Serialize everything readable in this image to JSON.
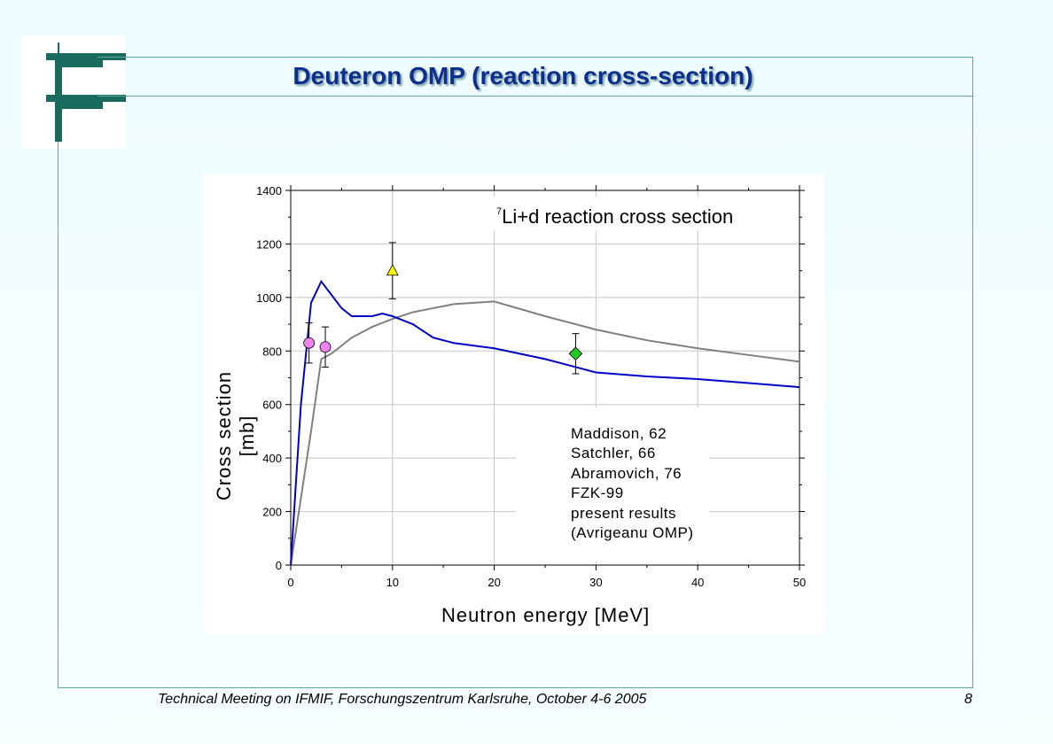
{
  "slide": {
    "title": "Deuteron OMP (reaction cross-section)",
    "footer": "Technical Meeting on IFMIF, Forschungszentrum Karlsruhe, October 4-6 2005",
    "page_number": "8",
    "colors": {
      "accent": "#1a6b5e",
      "title": "#0b2f8c",
      "frame": "#5aa8a8"
    }
  },
  "chart_data": {
    "type": "line",
    "title_sup": "7",
    "title": "Li+d reaction cross section",
    "xlabel": "Neutron energy [MeV]",
    "ylabel": "Cross section [mb]",
    "xlim": [
      0,
      50
    ],
    "ylim": [
      0,
      1400
    ],
    "xticks": [
      "0",
      "10",
      "20",
      "30",
      "40",
      "50"
    ],
    "yticks": [
      "0",
      "200",
      "400",
      "600",
      "800",
      "1000",
      "1200",
      "1400"
    ],
    "grid": true,
    "legend_position": "bottom-right",
    "series": [
      {
        "name": "FZK-99",
        "kind": "line",
        "color": "#808080",
        "x": [
          0,
          1,
          2,
          3,
          4,
          5,
          6,
          8,
          10,
          12,
          14,
          16,
          18,
          20,
          25,
          30,
          35,
          40,
          45,
          50
        ],
        "y": [
          0,
          250,
          500,
          770,
          790,
          820,
          850,
          890,
          920,
          945,
          960,
          975,
          980,
          985,
          930,
          880,
          840,
          810,
          785,
          760
        ]
      },
      {
        "name": "present results",
        "name_line2": "(Avrigeanu OMP)",
        "kind": "line",
        "color": "#0000c8",
        "x": [
          0,
          0.5,
          1,
          2,
          3,
          4,
          5,
          6,
          7,
          8,
          9,
          10,
          12,
          14,
          16,
          18,
          20,
          25,
          30,
          35,
          40,
          45,
          50
        ],
        "y": [
          0,
          300,
          600,
          980,
          1060,
          1010,
          960,
          930,
          930,
          930,
          940,
          930,
          900,
          850,
          830,
          820,
          810,
          770,
          720,
          705,
          695,
          680,
          665
        ]
      },
      {
        "name": "Maddison, 62",
        "kind": "marker",
        "marker": "circle",
        "color": "#ee82ee",
        "points": [
          {
            "x": 1.8,
            "y": 830,
            "err": 75
          },
          {
            "x": 3.4,
            "y": 815,
            "err": 75
          }
        ]
      },
      {
        "name": "Satchler, 66",
        "kind": "marker",
        "marker": "triangle",
        "color": "#ffff00",
        "points": [
          {
            "x": 10,
            "y": 1100,
            "err": 105
          }
        ]
      },
      {
        "name": "Abramovich, 76",
        "kind": "marker",
        "marker": "diamond",
        "color": "#22c922",
        "points": [
          {
            "x": 28,
            "y": 790,
            "err": 75
          }
        ]
      }
    ]
  }
}
